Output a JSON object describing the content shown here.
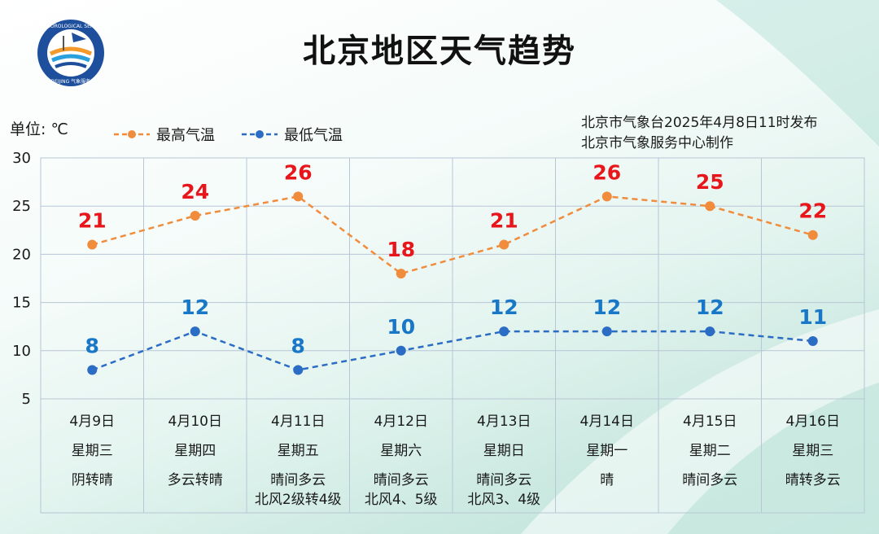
{
  "header": {
    "title": "北京地区天气趋势",
    "source_line1": "北京市气象台2025年4月8日11时发布",
    "source_line2": "北京市气象服务中心制作"
  },
  "logo": {
    "text_top": "METEOROLOGICAL SERVICE",
    "text_bottom": "BEIJING 气象服务"
  },
  "colors": {
    "high": "#f08c3c",
    "low": "#2b6cc4",
    "label_high": "#e8161b",
    "label_low": "#1877c6",
    "grid": "#b8c6d6"
  },
  "chart_data": {
    "type": "line",
    "unit_label": "单位: ℃",
    "ylim": [
      5,
      30
    ],
    "yticks": [
      5,
      10,
      15,
      20,
      25,
      30
    ],
    "grid": true,
    "legend_position": "top-left",
    "categories": [
      "4月9日",
      "4月10日",
      "4月11日",
      "4月12日",
      "4月13日",
      "4月14日",
      "4月15日",
      "4月16日"
    ],
    "weekdays": [
      "星期三",
      "星期四",
      "星期五",
      "星期六",
      "星期日",
      "星期一",
      "星期二",
      "星期三"
    ],
    "weather": [
      "阴转晴",
      "多云转晴",
      "晴间多云",
      "晴间多云",
      "晴间多云",
      "晴",
      "晴间多云",
      "晴转多云"
    ],
    "wind": [
      "",
      "",
      "北风2级转4级",
      "北风4、5级",
      "北风3、4级",
      "",
      "",
      ""
    ],
    "series": [
      {
        "name": "最高气温",
        "values": [
          21,
          24,
          26,
          18,
          21,
          26,
          25,
          22
        ]
      },
      {
        "name": "最低气温",
        "values": [
          8,
          12,
          8,
          10,
          12,
          12,
          12,
          11
        ]
      }
    ]
  }
}
